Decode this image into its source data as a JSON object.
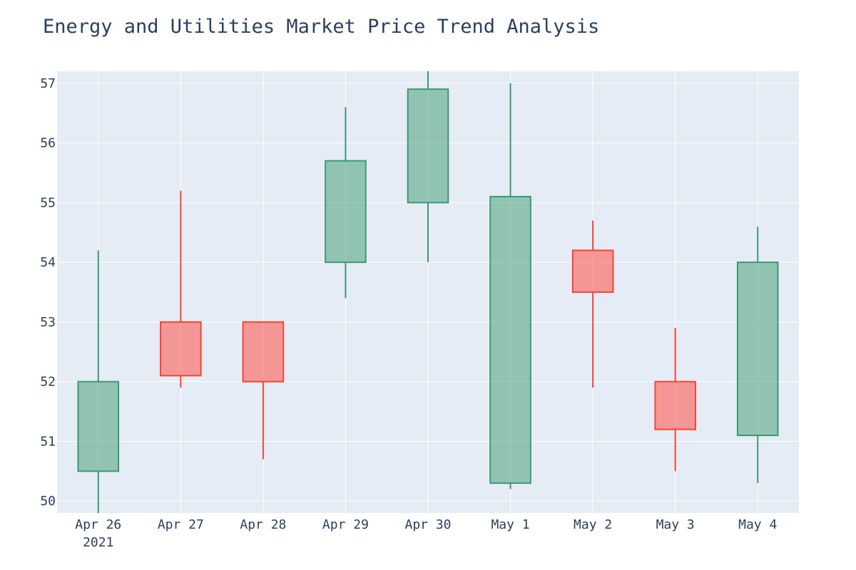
{
  "chart_data": {
    "type": "candlestick",
    "title": "Energy and Utilities Market Price Trend Analysis",
    "xlabel": "",
    "ylabel": "",
    "ylim": [
      49.8,
      57.2
    ],
    "yticks": [
      50,
      51,
      52,
      53,
      54,
      55,
      56,
      57
    ],
    "year_label": "2021",
    "grid": true,
    "colors": {
      "increasing": "#3d9970",
      "decreasing": "#ff4136",
      "background": "#e5ecf6",
      "grid": "#ffffff",
      "text": "#2a3f5f"
    },
    "candles": [
      {
        "date": "Apr 26",
        "open": 50.5,
        "high": 54.2,
        "low": 49.8,
        "close": 52.0
      },
      {
        "date": "Apr 27",
        "open": 53.0,
        "high": 55.2,
        "low": 51.9,
        "close": 52.1
      },
      {
        "date": "Apr 28",
        "open": 53.0,
        "high": 53.0,
        "low": 50.7,
        "close": 52.0
      },
      {
        "date": "Apr 29",
        "open": 54.0,
        "high": 56.6,
        "low": 53.4,
        "close": 55.7
      },
      {
        "date": "Apr 30",
        "open": 55.0,
        "high": 57.2,
        "low": 54.0,
        "close": 56.9
      },
      {
        "date": "May 1",
        "open": 50.3,
        "high": 57.0,
        "low": 50.2,
        "close": 55.1
      },
      {
        "date": "May 2",
        "open": 54.2,
        "high": 54.7,
        "low": 51.9,
        "close": 53.5
      },
      {
        "date": "May 3",
        "open": 52.0,
        "high": 52.9,
        "low": 50.5,
        "close": 51.2
      },
      {
        "date": "May 4",
        "open": 51.1,
        "high": 54.6,
        "low": 50.3,
        "close": 54.0
      }
    ]
  }
}
